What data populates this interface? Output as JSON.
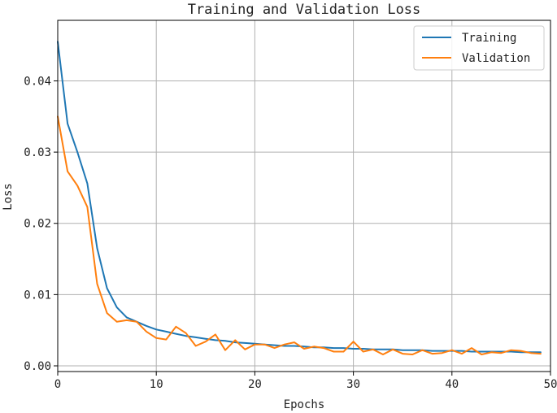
{
  "chart_data": {
    "type": "line",
    "title": "Training and Validation Loss",
    "xlabel": "Epochs",
    "ylabel": "Loss",
    "xlim": [
      0,
      50
    ],
    "ylim": [
      -0.0008,
      0.0485
    ],
    "xticks": [
      0,
      10,
      20,
      30,
      40,
      50
    ],
    "xtick_labels": [
      "0",
      "10",
      "20",
      "30",
      "40",
      "50"
    ],
    "yticks": [
      0.0,
      0.01,
      0.02,
      0.03,
      0.04
    ],
    "ytick_labels": [
      "0.00",
      "0.01",
      "0.02",
      "0.03",
      "0.04"
    ],
    "grid": true,
    "legend_position": "top-right",
    "x": [
      0,
      1,
      2,
      3,
      4,
      5,
      6,
      7,
      8,
      9,
      10,
      11,
      12,
      13,
      14,
      15,
      16,
      17,
      18,
      19,
      20,
      21,
      22,
      23,
      24,
      25,
      26,
      27,
      28,
      29,
      30,
      31,
      32,
      33,
      34,
      35,
      36,
      37,
      38,
      39,
      40,
      41,
      42,
      43,
      44,
      45,
      46,
      47,
      48,
      49
    ],
    "series": [
      {
        "name": "Training",
        "color": "#1f77b4",
        "values": [
          0.0455,
          0.034,
          0.03,
          0.0256,
          0.0165,
          0.0109,
          0.0082,
          0.0068,
          0.0062,
          0.0056,
          0.0051,
          0.0048,
          0.0045,
          0.0042,
          0.004,
          0.0038,
          0.0036,
          0.0035,
          0.0033,
          0.0032,
          0.0031,
          0.003,
          0.0029,
          0.0028,
          0.0028,
          0.0027,
          0.0026,
          0.0026,
          0.0025,
          0.0025,
          0.0024,
          0.0024,
          0.0023,
          0.0023,
          0.0023,
          0.0022,
          0.0022,
          0.0022,
          0.0021,
          0.0021,
          0.0021,
          0.0021,
          0.002,
          0.002,
          0.002,
          0.002,
          0.002,
          0.0019,
          0.0019,
          0.0019
        ]
      },
      {
        "name": "Validation",
        "color": "#ff7f0e",
        "values": [
          0.035,
          0.0273,
          0.0253,
          0.0223,
          0.0115,
          0.0074,
          0.0062,
          0.0064,
          0.0062,
          0.0048,
          0.0039,
          0.0037,
          0.0055,
          0.0046,
          0.0028,
          0.0034,
          0.0044,
          0.0022,
          0.0036,
          0.0023,
          0.003,
          0.003,
          0.0025,
          0.003,
          0.0033,
          0.0024,
          0.0027,
          0.0025,
          0.002,
          0.002,
          0.0034,
          0.002,
          0.0023,
          0.0016,
          0.0023,
          0.0017,
          0.0016,
          0.0022,
          0.0017,
          0.0018,
          0.0022,
          0.0017,
          0.0025,
          0.0016,
          0.0019,
          0.0018,
          0.0022,
          0.0021,
          0.0018,
          0.0017
        ]
      }
    ]
  }
}
